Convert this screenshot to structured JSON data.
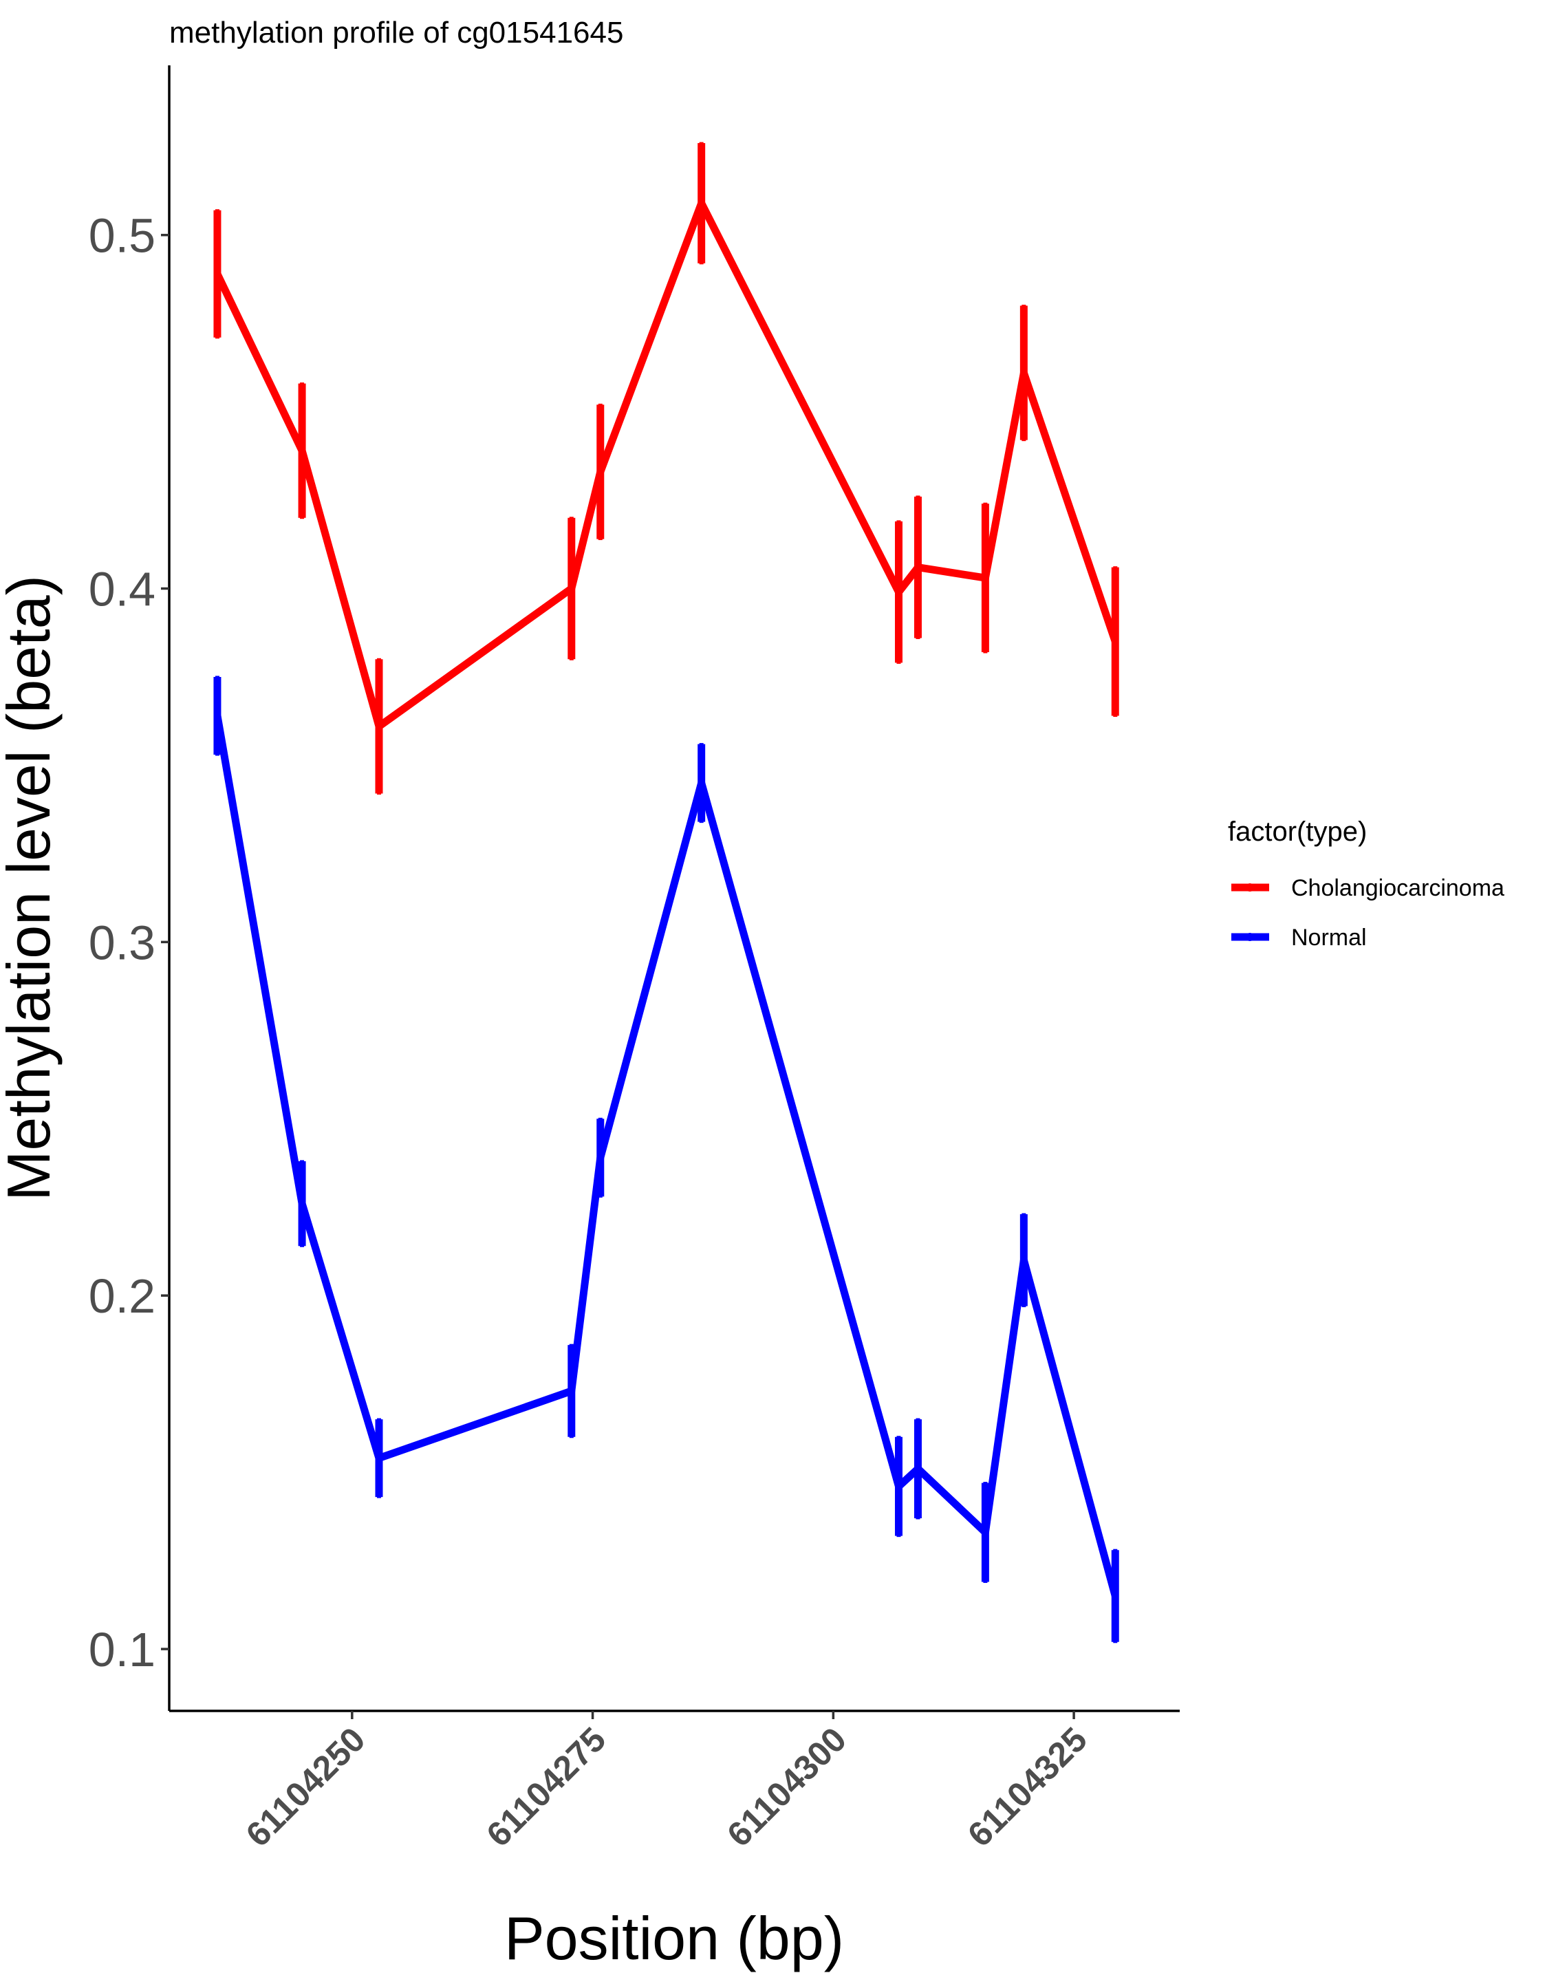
{
  "chart_data": {
    "type": "line",
    "title": "methylation profile of cg01541645",
    "xlabel": "Position (bp)",
    "ylabel": "Methylation level (beta)",
    "xlim": [
      6110423.1,
      6110433.6
    ],
    "ylim": [
      0.0825,
      0.548
    ],
    "x_ticks": [
      6110425,
      6110427.5,
      6110430,
      6110432.5
    ],
    "x_tick_labels": [
      "61104250",
      "61104275",
      "61104300",
      "61104325"
    ],
    "y_ticks": [
      0.1,
      0.2,
      0.3,
      0.4,
      0.5
    ],
    "y_tick_labels": [
      "0.1",
      "0.2",
      "0.3",
      "0.4",
      "0.5"
    ],
    "x": [
      6110423.6,
      6110424.48,
      6110425.28,
      6110427.28,
      6110427.58,
      6110428.63,
      6110430.68,
      6110430.88,
      6110431.58,
      6110431.98,
      6110432.93
    ],
    "series": [
      {
        "name": "Cholangiocarcinoma",
        "color": "#ff0000",
        "values": [
          0.489,
          0.439,
          0.361,
          0.4,
          0.433,
          0.509,
          0.399,
          0.406,
          0.403,
          0.461,
          0.385
        ],
        "error": [
          0.018,
          0.019,
          0.019,
          0.02,
          0.019,
          0.017,
          0.02,
          0.02,
          0.021,
          0.019,
          0.021
        ]
      },
      {
        "name": "Normal",
        "color": "#0000ff",
        "values": [
          0.364,
          0.226,
          0.154,
          0.173,
          0.239,
          0.345,
          0.146,
          0.151,
          0.133,
          0.21,
          0.115
        ],
        "error": [
          0.011,
          0.012,
          0.011,
          0.013,
          0.011,
          0.011,
          0.014,
          0.014,
          0.014,
          0.013,
          0.013
        ]
      }
    ],
    "legend": {
      "title": "factor(type)",
      "position": "right",
      "entries": [
        "Cholangiocarcinoma",
        "Normal"
      ]
    },
    "grid": false
  }
}
